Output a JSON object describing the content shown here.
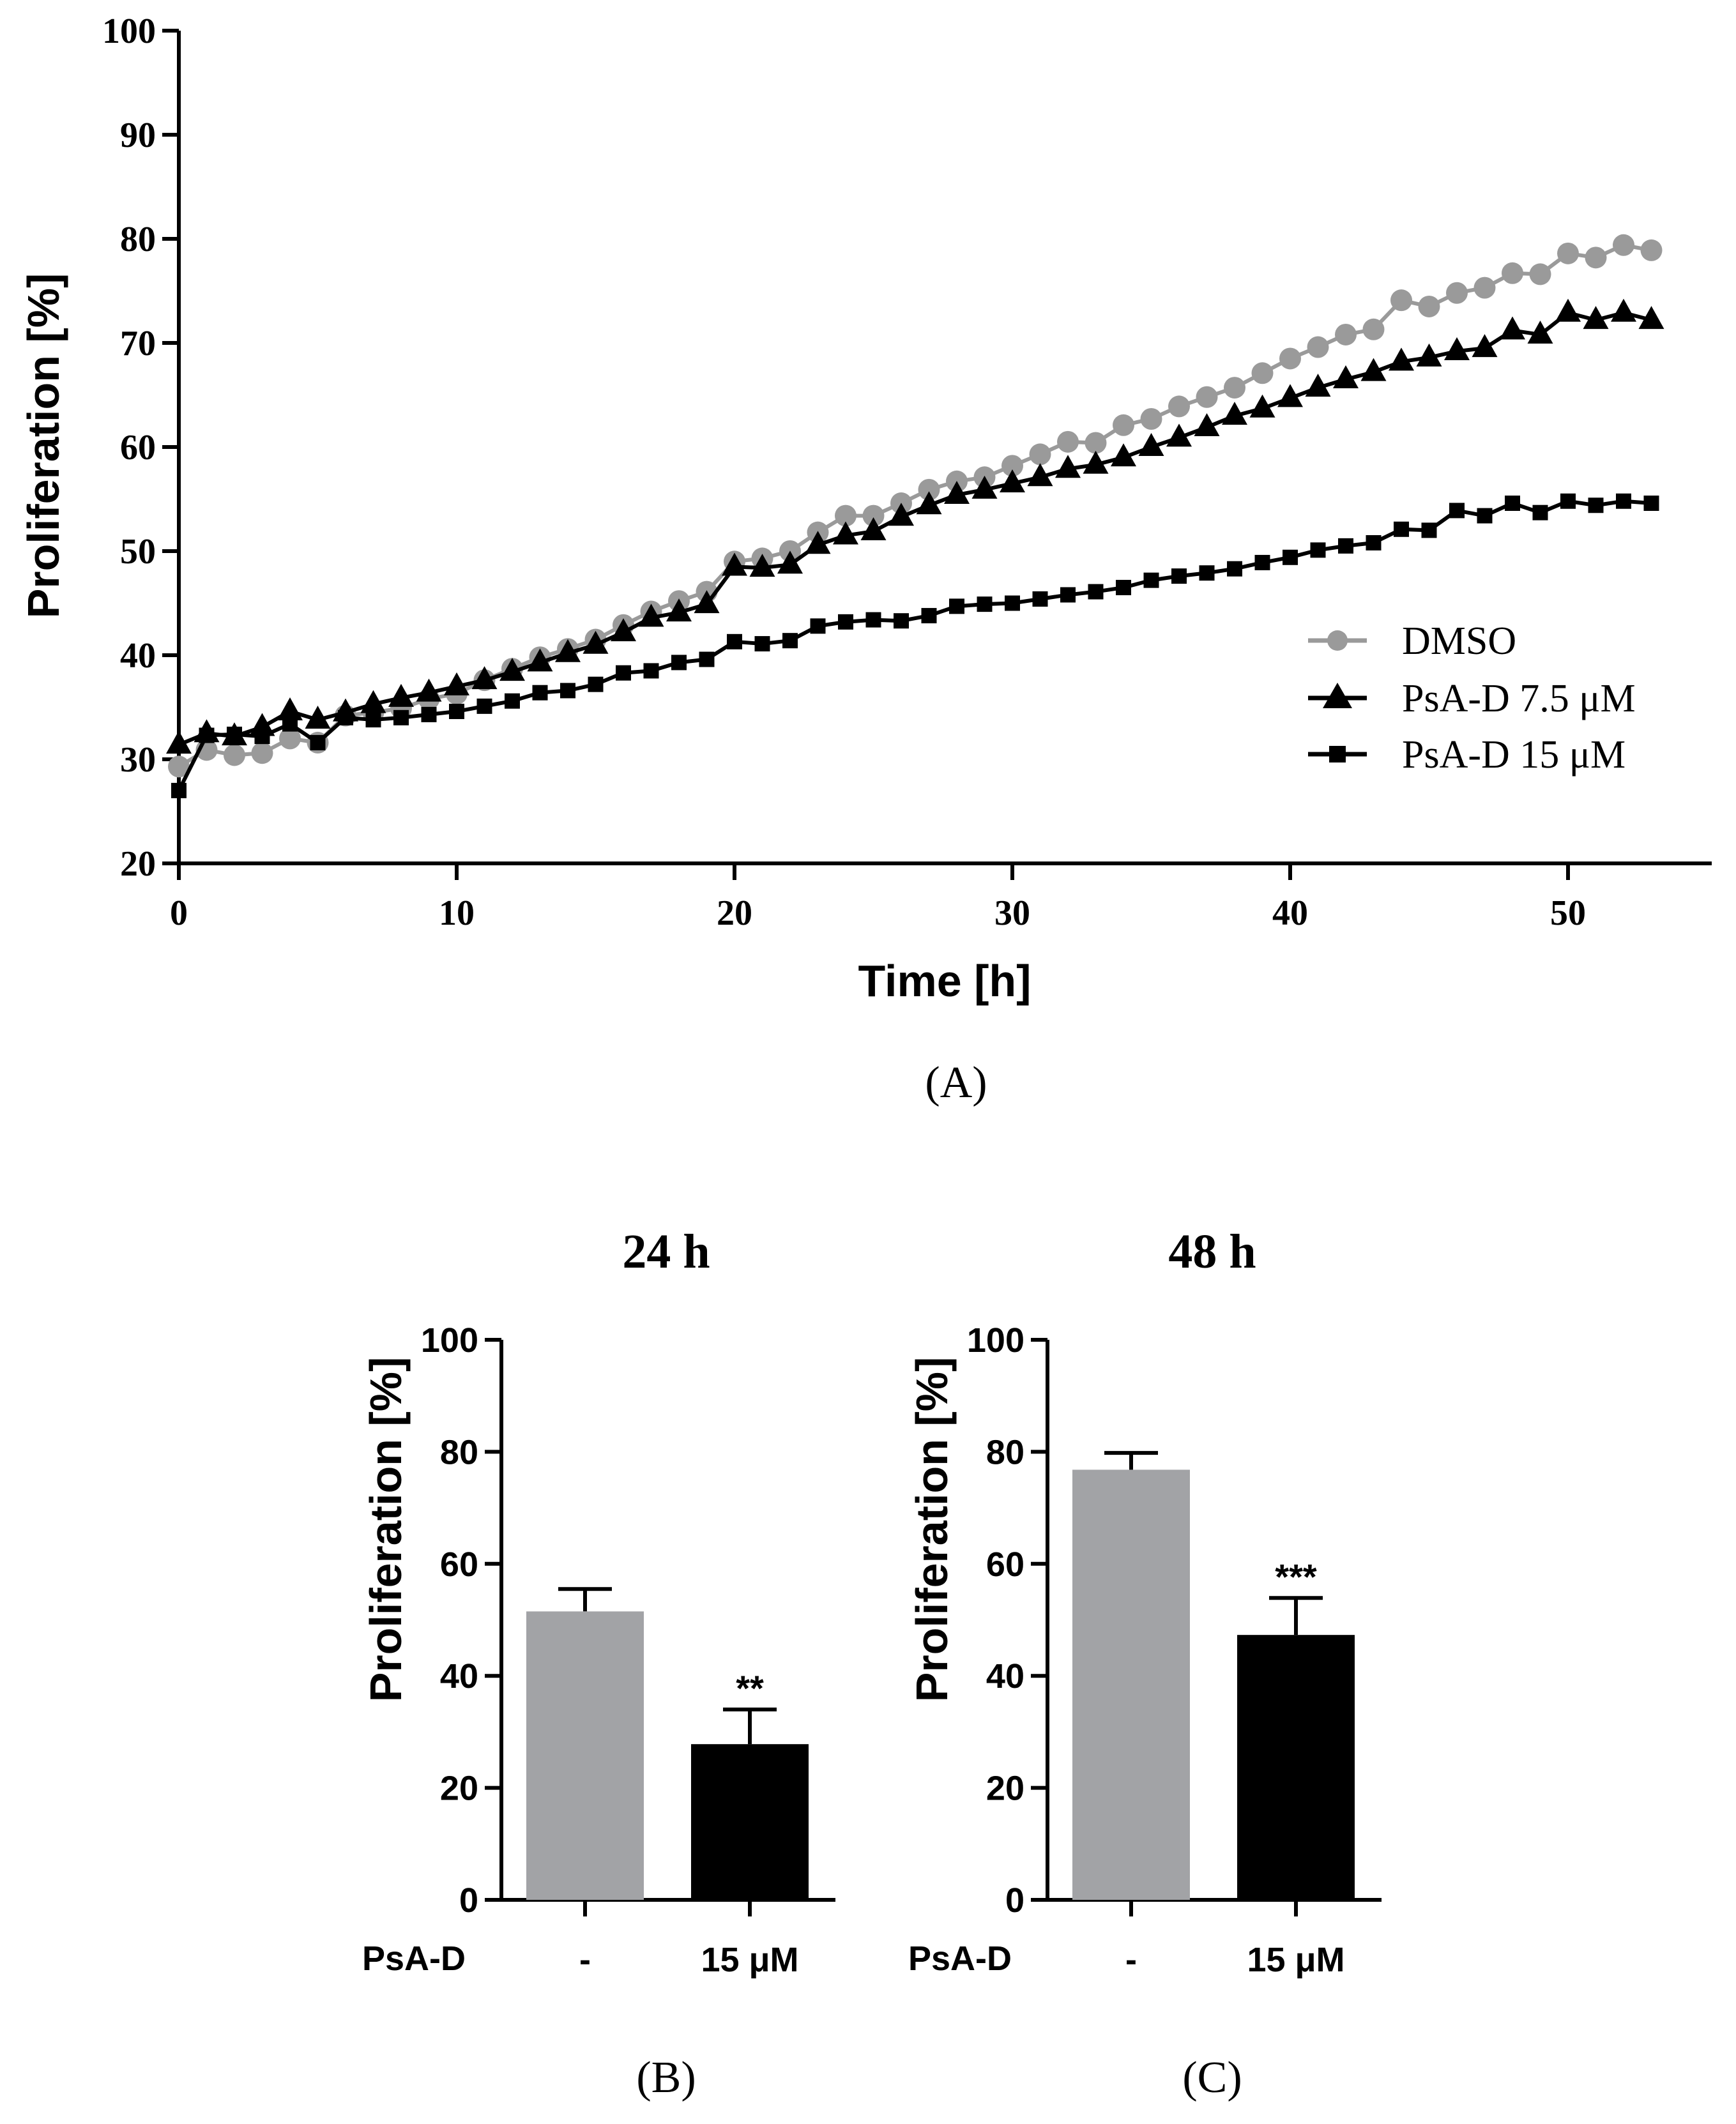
{
  "colors": {
    "gray": "#9a9a9a",
    "gray_bar": "#a2a3a6",
    "black": "#000000"
  },
  "chart_data": [
    {
      "type": "line",
      "panel_label": "(A)",
      "xlabel": "Time [h]",
      "ylabel": "Proliferation [%]",
      "xlim": [
        0,
        55
      ],
      "ylim": [
        20,
        100
      ],
      "xticks": [
        "0",
        "10",
        "20",
        "30",
        "40",
        "50"
      ],
      "yticks": [
        "20",
        "30",
        "40",
        "50",
        "60",
        "70",
        "80",
        "90",
        "100"
      ],
      "legend_position": "right",
      "x": [
        0,
        1,
        2,
        3,
        4,
        5,
        6,
        7,
        8,
        9,
        10,
        11,
        12,
        13,
        14,
        15,
        16,
        17,
        18,
        19,
        20,
        21,
        22,
        23,
        24,
        25,
        26,
        27,
        28,
        29,
        30,
        31,
        32,
        33,
        34,
        35,
        36,
        37,
        38,
        39,
        40,
        41,
        42,
        43,
        44,
        45,
        46,
        47,
        48,
        49,
        50,
        51,
        52,
        53
      ],
      "series": [
        {
          "name": "DMSO",
          "marker": "circle",
          "color": "#9a9a9a",
          "values": [
            29.3,
            30.9,
            30.4,
            30.6,
            32.0,
            31.6,
            34.2,
            34.5,
            34.9,
            35.8,
            36.3,
            37.6,
            38.7,
            39.8,
            40.6,
            41.5,
            42.9,
            44.2,
            45.2,
            46.1,
            49.0,
            49.3,
            50.0,
            51.8,
            53.4,
            53.4,
            54.6,
            55.9,
            56.7,
            57.1,
            58.2,
            59.3,
            60.5,
            60.4,
            62.1,
            62.7,
            63.9,
            64.8,
            65.7,
            67.1,
            68.5,
            69.6,
            70.8,
            71.3,
            74.1,
            73.5,
            74.8,
            75.3,
            76.7,
            76.6,
            78.6,
            78.2,
            79.4,
            78.9
          ]
        },
        {
          "name": "PsA-D 7.5 μM",
          "marker": "triangle",
          "color": "#000000",
          "values": [
            31.4,
            32.5,
            32.2,
            33.1,
            34.6,
            33.8,
            34.5,
            35.3,
            35.9,
            36.4,
            37.0,
            37.6,
            38.4,
            39.3,
            40.2,
            41.0,
            42.2,
            43.6,
            44.1,
            44.9,
            48.5,
            48.4,
            48.7,
            50.6,
            51.5,
            51.9,
            53.3,
            54.4,
            55.4,
            55.9,
            56.5,
            57.1,
            57.9,
            58.3,
            59.0,
            60.0,
            60.9,
            61.9,
            63.0,
            63.7,
            64.7,
            65.7,
            66.5,
            67.2,
            68.2,
            68.6,
            69.2,
            69.5,
            71.2,
            70.8,
            72.9,
            72.2,
            72.9,
            72.2
          ]
        },
        {
          "name": "PsA-D 15 μM",
          "marker": "square",
          "color": "#000000",
          "values": [
            27.0,
            32.3,
            32.4,
            32.2,
            33.4,
            31.6,
            34.0,
            33.8,
            34.0,
            34.3,
            34.6,
            35.1,
            35.6,
            36.4,
            36.6,
            37.2,
            38.3,
            38.5,
            39.3,
            39.6,
            41.3,
            41.1,
            41.4,
            42.8,
            43.2,
            43.4,
            43.3,
            43.8,
            44.7,
            44.9,
            45.0,
            45.4,
            45.8,
            46.1,
            46.5,
            47.2,
            47.6,
            47.9,
            48.3,
            48.9,
            49.4,
            50.1,
            50.5,
            50.8,
            52.1,
            52.0,
            53.9,
            53.4,
            54.6,
            53.7,
            54.8,
            54.4,
            54.8,
            54.6
          ]
        }
      ]
    },
    {
      "type": "bar",
      "panel_label": "(B)",
      "title": "24 h",
      "ylabel": "Proliferation [%]",
      "ylim": [
        0,
        100
      ],
      "yticks": [
        "0",
        "20",
        "40",
        "60",
        "80",
        "100"
      ],
      "row_label": "PsA-D",
      "categories": [
        "-",
        "15 μM"
      ],
      "values": [
        51.5,
        27.8
      ],
      "error": [
        4.0,
        6.2
      ],
      "bar_colors": [
        "#a2a3a6",
        "#000000"
      ],
      "annotations": [
        "",
        "**"
      ]
    },
    {
      "type": "bar",
      "panel_label": "(C)",
      "title": "48 h",
      "ylabel": "Proliferation [%]",
      "ylim": [
        0,
        100
      ],
      "yticks": [
        "0",
        "20",
        "40",
        "60",
        "80",
        "100"
      ],
      "row_label": "PsA-D",
      "categories": [
        "-",
        "15 μM"
      ],
      "values": [
        76.8,
        47.3
      ],
      "error": [
        3.0,
        6.6
      ],
      "bar_colors": [
        "#a2a3a6",
        "#000000"
      ],
      "annotations": [
        "",
        "***"
      ]
    }
  ]
}
